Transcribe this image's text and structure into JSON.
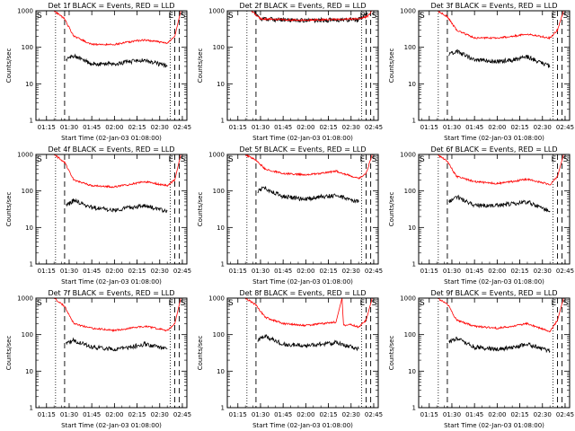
{
  "figure": {
    "x_tick_labels": [
      "01:15",
      "01:30",
      "01:45",
      "02:00",
      "02:15",
      "02:30",
      "02:45"
    ],
    "y_tick_labels": [
      "1",
      "10",
      "100",
      "1000"
    ],
    "xlabel": "Start Time (02-Jan-03 01:08:00)",
    "ylabel": "Counts/sec",
    "marker_S": "S",
    "marker_E": "E"
  },
  "chart_data": [
    {
      "type": "line",
      "title": "Det 1f BLACK = Events, RED = LLD",
      "xlabel": "Start Time (02-Jan-03 01:08:00)",
      "ylabel": "Counts/sec",
      "y_scale": "log",
      "ylim": [
        1,
        1000
      ],
      "x_ticks": [
        "01:15",
        "01:30",
        "01:45",
        "02:00",
        "02:15",
        "02:30",
        "02:45"
      ],
      "dotted_lines_x": [
        "01:21",
        "02:37"
      ],
      "dashed_lines_x": [
        "01:27",
        "02:40",
        "02:43"
      ],
      "series": [
        {
          "name": "Events",
          "color": "#000000",
          "x": [
            "01:28",
            "01:33",
            "01:45",
            "02:00",
            "02:10",
            "02:20",
            "02:35"
          ],
          "values": [
            45,
            60,
            35,
            35,
            40,
            45,
            30
          ]
        },
        {
          "name": "LLD",
          "color": "#ff0000",
          "x": [
            "01:20",
            "01:27",
            "01:33",
            "01:45",
            "02:00",
            "02:10",
            "02:20",
            "02:35",
            "02:40",
            "02:44"
          ],
          "values": [
            1000,
            600,
            200,
            120,
            120,
            140,
            160,
            130,
            200,
            1000
          ]
        }
      ]
    },
    {
      "type": "line",
      "title": "Det 2f BLACK = Events, RED = LLD",
      "xlabel": "Start Time (02-Jan-03 01:08:00)",
      "ylabel": "Counts/sec",
      "y_scale": "log",
      "ylim": [
        1,
        1000
      ],
      "x_ticks": [
        "01:15",
        "01:30",
        "01:45",
        "02:00",
        "02:15",
        "02:30",
        "02:45"
      ],
      "dotted_lines_x": [
        "01:21",
        "02:37"
      ],
      "dashed_lines_x": [
        "01:27",
        "02:40",
        "02:43"
      ],
      "series": [
        {
          "name": "Events",
          "color": "#000000",
          "x": [
            "01:26",
            "01:30",
            "01:45",
            "02:00",
            "02:15",
            "02:35",
            "02:41"
          ],
          "values": [
            900,
            600,
            560,
            540,
            560,
            570,
            900
          ]
        },
        {
          "name": "LLD",
          "color": "#ff0000",
          "x": [
            "01:24",
            "01:30",
            "01:45",
            "02:00",
            "02:15",
            "02:35",
            "02:41",
            "02:44"
          ],
          "values": [
            1000,
            600,
            570,
            550,
            580,
            600,
            700,
            1000
          ]
        }
      ]
    },
    {
      "type": "line",
      "title": "Det 3f BLACK = Events, RED = LLD",
      "xlabel": "Start Time (02-Jan-03 01:08:00)",
      "ylabel": "Counts/sec",
      "y_scale": "log",
      "ylim": [
        1,
        1000
      ],
      "x_ticks": [
        "01:15",
        "01:30",
        "01:45",
        "02:00",
        "02:15",
        "02:30",
        "02:45"
      ],
      "dotted_lines_x": [
        "01:21",
        "02:37"
      ],
      "dashed_lines_x": [
        "01:27",
        "02:40",
        "02:43"
      ],
      "series": [
        {
          "name": "Events",
          "color": "#000000",
          "x": [
            "01:28",
            "01:33",
            "01:45",
            "02:00",
            "02:10",
            "02:20",
            "02:35"
          ],
          "values": [
            60,
            80,
            45,
            40,
            45,
            55,
            30
          ]
        },
        {
          "name": "LLD",
          "color": "#ff0000",
          "x": [
            "01:20",
            "01:27",
            "01:33",
            "01:45",
            "02:00",
            "02:10",
            "02:20",
            "02:35",
            "02:40",
            "02:44"
          ],
          "values": [
            1000,
            700,
            300,
            180,
            180,
            200,
            230,
            180,
            300,
            1000
          ]
        }
      ]
    },
    {
      "type": "line",
      "title": "Det 4f BLACK = Events, RED = LLD",
      "xlabel": "Start Time (02-Jan-03 01:08:00)",
      "ylabel": "Counts/sec",
      "y_scale": "log",
      "ylim": [
        1,
        1000
      ],
      "x_ticks": [
        "01:15",
        "01:30",
        "01:45",
        "02:00",
        "02:15",
        "02:30",
        "02:45"
      ],
      "dotted_lines_x": [
        "01:21",
        "02:37"
      ],
      "dashed_lines_x": [
        "01:27",
        "02:40",
        "02:43"
      ],
      "series": [
        {
          "name": "Events",
          "color": "#000000",
          "x": [
            "01:28",
            "01:33",
            "01:45",
            "02:00",
            "02:10",
            "02:20",
            "02:35"
          ],
          "values": [
            40,
            55,
            35,
            30,
            35,
            40,
            28
          ]
        },
        {
          "name": "LLD",
          "color": "#ff0000",
          "x": [
            "01:20",
            "01:27",
            "01:33",
            "01:45",
            "02:00",
            "02:10",
            "02:20",
            "02:35",
            "02:40",
            "02:44"
          ],
          "values": [
            1000,
            600,
            200,
            140,
            130,
            150,
            180,
            140,
            200,
            1000
          ]
        }
      ]
    },
    {
      "type": "line",
      "title": "Det 5f BLACK = Events, RED = LLD",
      "xlabel": "Start Time (02-Jan-03 01:08:00)",
      "ylabel": "Counts/sec",
      "y_scale": "log",
      "ylim": [
        1,
        1000
      ],
      "x_ticks": [
        "01:15",
        "01:30",
        "01:45",
        "02:00",
        "02:15",
        "02:30",
        "02:45"
      ],
      "dotted_lines_x": [
        "01:21",
        "02:37"
      ],
      "dashed_lines_x": [
        "01:27",
        "02:40",
        "02:43"
      ],
      "series": [
        {
          "name": "Events",
          "color": "#000000",
          "x": [
            "01:28",
            "01:33",
            "01:45",
            "02:00",
            "02:10",
            "02:20",
            "02:35"
          ],
          "values": [
            100,
            120,
            70,
            60,
            70,
            75,
            50
          ]
        },
        {
          "name": "LLD",
          "color": "#ff0000",
          "x": [
            "01:20",
            "01:27",
            "01:33",
            "01:45",
            "02:00",
            "02:10",
            "02:20",
            "02:35",
            "02:40",
            "02:44"
          ],
          "values": [
            1000,
            700,
            400,
            300,
            280,
            300,
            350,
            220,
            300,
            1000
          ]
        }
      ]
    },
    {
      "type": "line",
      "title": "Det 6f BLACK = Events, RED = LLD",
      "xlabel": "Start Time (02-Jan-03 01:08:00)",
      "ylabel": "Counts/sec",
      "y_scale": "log",
      "ylim": [
        1,
        1000
      ],
      "x_ticks": [
        "01:15",
        "01:30",
        "01:45",
        "02:00",
        "02:15",
        "02:30",
        "02:45"
      ],
      "dotted_lines_x": [
        "01:21",
        "02:37"
      ],
      "dashed_lines_x": [
        "01:27",
        "02:40",
        "02:43"
      ],
      "series": [
        {
          "name": "Events",
          "color": "#000000",
          "x": [
            "01:28",
            "01:33",
            "01:45",
            "02:00",
            "02:10",
            "02:20",
            "02:35"
          ],
          "values": [
            50,
            70,
            40,
            40,
            45,
            50,
            28
          ]
        },
        {
          "name": "LLD",
          "color": "#ff0000",
          "x": [
            "01:20",
            "01:27",
            "01:33",
            "01:45",
            "02:00",
            "02:10",
            "02:20",
            "02:35",
            "02:40",
            "02:44"
          ],
          "values": [
            1000,
            650,
            250,
            180,
            160,
            180,
            210,
            150,
            250,
            1000
          ]
        }
      ]
    },
    {
      "type": "line",
      "title": "Det 7f BLACK = Events, RED = LLD",
      "xlabel": "Start Time (02-Jan-03 01:08:00)",
      "ylabel": "Counts/sec",
      "y_scale": "log",
      "ylim": [
        1,
        1000
      ],
      "x_ticks": [
        "01:15",
        "01:30",
        "01:45",
        "02:00",
        "02:15",
        "02:30",
        "02:45"
      ],
      "dotted_lines_x": [
        "01:21",
        "02:37"
      ],
      "dashed_lines_x": [
        "01:27",
        "02:40",
        "02:43"
      ],
      "series": [
        {
          "name": "Events",
          "color": "#000000",
          "x": [
            "01:28",
            "01:33",
            "01:45",
            "02:00",
            "02:10",
            "02:20",
            "02:35"
          ],
          "values": [
            55,
            70,
            45,
            40,
            45,
            55,
            40
          ]
        },
        {
          "name": "LLD",
          "color": "#ff0000",
          "x": [
            "01:20",
            "01:27",
            "01:33",
            "01:45",
            "02:00",
            "02:10",
            "02:20",
            "02:35",
            "02:40",
            "02:44"
          ],
          "values": [
            1000,
            600,
            200,
            150,
            130,
            150,
            170,
            130,
            200,
            1000
          ]
        }
      ]
    },
    {
      "type": "line",
      "title": "Det 8f BLACK = Events, RED = LLD",
      "xlabel": "Start Time (02-Jan-03 01:08:00)",
      "ylabel": "Counts/sec",
      "y_scale": "log",
      "ylim": [
        1,
        1000
      ],
      "x_ticks": [
        "01:15",
        "01:30",
        "01:45",
        "02:00",
        "02:15",
        "02:30",
        "02:45"
      ],
      "dotted_lines_x": [
        "01:21",
        "02:37"
      ],
      "dashed_lines_x": [
        "01:27",
        "02:40",
        "02:43"
      ],
      "series": [
        {
          "name": "Events",
          "color": "#000000",
          "x": [
            "01:28",
            "01:33",
            "01:45",
            "02:00",
            "02:10",
            "02:20",
            "02:35"
          ],
          "values": [
            70,
            90,
            55,
            50,
            55,
            60,
            40
          ]
        },
        {
          "name": "LLD",
          "color": "#ff0000",
          "x": [
            "01:20",
            "01:27",
            "01:33",
            "01:45",
            "02:00",
            "02:10",
            "02:20",
            "02:24",
            "02:25",
            "02:30",
            "02:35",
            "02:40",
            "02:44"
          ],
          "values": [
            1000,
            650,
            300,
            200,
            180,
            200,
            220,
            1000,
            180,
            190,
            160,
            250,
            1000
          ]
        }
      ]
    },
    {
      "type": "line",
      "title": "Det 9f BLACK = Events, RED = LLD",
      "xlabel": "Start Time (02-Jan-03 01:08:00)",
      "ylabel": "Counts/sec",
      "y_scale": "log",
      "ylim": [
        1,
        1000
      ],
      "x_ticks": [
        "01:15",
        "01:30",
        "01:45",
        "02:00",
        "02:15",
        "02:30",
        "02:45"
      ],
      "dotted_lines_x": [
        "01:21",
        "02:37"
      ],
      "dashed_lines_x": [
        "01:27",
        "02:40",
        "02:43"
      ],
      "series": [
        {
          "name": "Events",
          "color": "#000000",
          "x": [
            "01:28",
            "01:33",
            "01:45",
            "02:00",
            "02:10",
            "02:20",
            "02:35"
          ],
          "values": [
            60,
            80,
            45,
            40,
            45,
            55,
            35
          ]
        },
        {
          "name": "LLD",
          "color": "#ff0000",
          "x": [
            "01:20",
            "01:27",
            "01:33",
            "01:45",
            "02:00",
            "02:10",
            "02:20",
            "02:35",
            "02:40",
            "02:44"
          ],
          "values": [
            1000,
            700,
            250,
            170,
            150,
            170,
            200,
            120,
            250,
            1000
          ]
        }
      ]
    }
  ]
}
